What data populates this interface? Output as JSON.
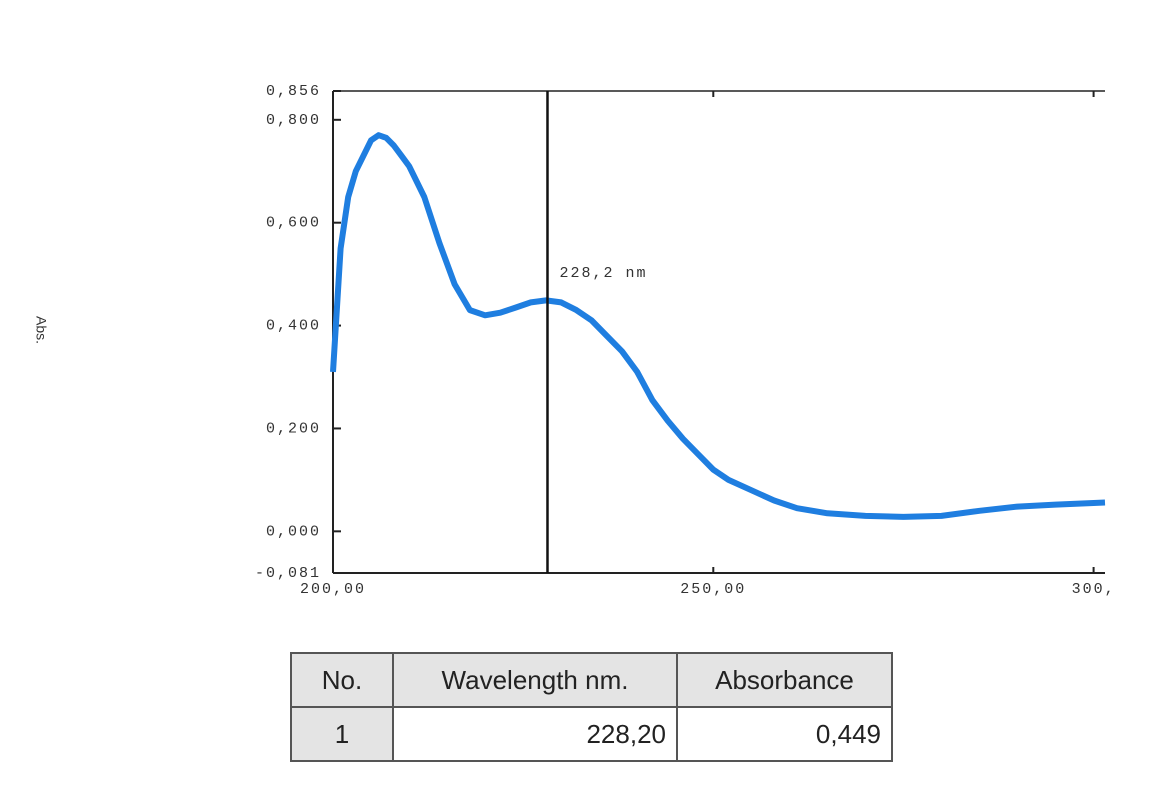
{
  "chart_data": {
    "type": "line",
    "y_label": "Abs.",
    "x": [
      200,
      201,
      202,
      203,
      204,
      205,
      206,
      207,
      208,
      209,
      210,
      212,
      214,
      216,
      218,
      220,
      222,
      224,
      226,
      228,
      230,
      232,
      234,
      236,
      238,
      240,
      242,
      244,
      246,
      248,
      250,
      252,
      255,
      258,
      261,
      265,
      270,
      275,
      280,
      285,
      290,
      295,
      300,
      301.5
    ],
    "series": [
      {
        "color": "#1f7ee0",
        "values": [
          0.31,
          0.55,
          0.65,
          0.7,
          0.73,
          0.76,
          0.77,
          0.765,
          0.75,
          0.73,
          0.71,
          0.65,
          0.56,
          0.48,
          0.43,
          0.42,
          0.425,
          0.435,
          0.445,
          0.449,
          0.445,
          0.43,
          0.41,
          0.38,
          0.35,
          0.31,
          0.255,
          0.215,
          0.18,
          0.15,
          0.12,
          0.1,
          0.08,
          0.06,
          0.045,
          0.035,
          0.03,
          0.028,
          0.03,
          0.04,
          0.048,
          0.052,
          0.055,
          0.056
        ]
      }
    ],
    "xlim": [
      200,
      301.5
    ],
    "xticks": [
      {
        "value": 200,
        "label": "200,00"
      },
      {
        "value": 250,
        "label": "250,00"
      },
      {
        "value": 300,
        "label": "300,"
      }
    ],
    "ylim": [
      -0.081,
      0.856
    ],
    "yticks": [
      {
        "value": -0.081,
        "label": "-0,081"
      },
      {
        "value": 0,
        "label": "0,000"
      },
      {
        "value": 0.2,
        "label": "0,200"
      },
      {
        "value": 0.4,
        "label": "0,400"
      },
      {
        "value": 0.6,
        "label": "0,600"
      },
      {
        "value": 0.8,
        "label": "0,800"
      },
      {
        "value": 0.856,
        "label": "0,856"
      }
    ],
    "marker": {
      "x": 228.2,
      "label": "228,2 nm"
    }
  },
  "table": {
    "header": [
      "No.",
      "Wavelength nm.",
      "Absorbance"
    ],
    "rows": [
      [
        "1",
        "228,20",
        "0,449"
      ]
    ]
  }
}
